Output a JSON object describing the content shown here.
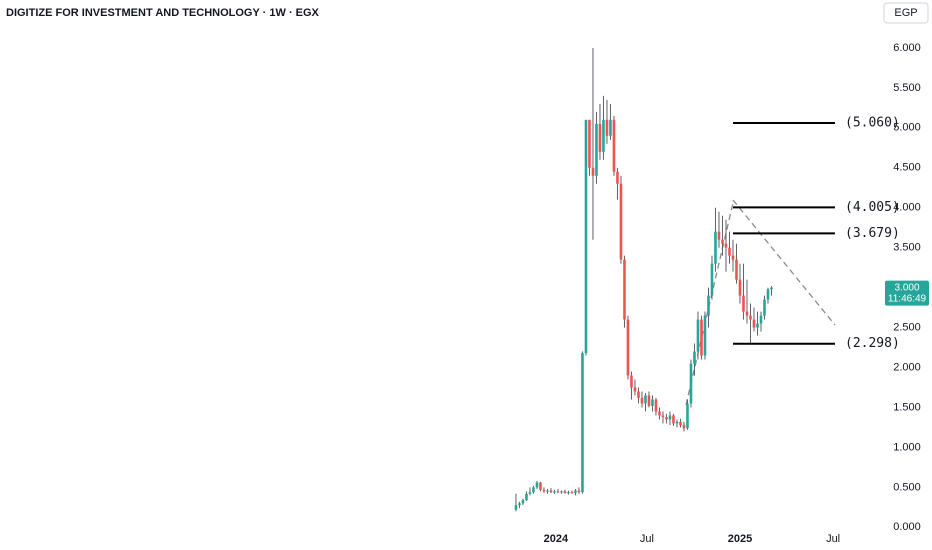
{
  "chart_data": {
    "type": "candlestick",
    "title": "DIGITIZE FOR INVESTMENT AND TECHNOLOGY · 1W · EGX",
    "currency": "EGP",
    "up_color": "#26a69a",
    "down_color": "#ef5350",
    "wick_color": "#5d606b",
    "candles": [
      [
        0.22,
        0.42,
        0.2,
        0.28
      ],
      [
        0.28,
        0.32,
        0.24,
        0.3
      ],
      [
        0.3,
        0.36,
        0.28,
        0.34
      ],
      [
        0.34,
        0.45,
        0.33,
        0.42
      ],
      [
        0.42,
        0.5,
        0.4,
        0.44
      ],
      [
        0.44,
        0.52,
        0.42,
        0.5
      ],
      [
        0.5,
        0.58,
        0.48,
        0.56
      ],
      [
        0.56,
        0.57,
        0.45,
        0.47
      ],
      [
        0.47,
        0.5,
        0.43,
        0.45
      ],
      [
        0.45,
        0.48,
        0.42,
        0.46
      ],
      [
        0.46,
        0.49,
        0.43,
        0.44
      ],
      [
        0.44,
        0.47,
        0.42,
        0.45
      ],
      [
        0.45,
        0.48,
        0.43,
        0.44
      ],
      [
        0.44,
        0.46,
        0.42,
        0.45
      ],
      [
        0.45,
        0.47,
        0.42,
        0.43
      ],
      [
        0.43,
        0.46,
        0.41,
        0.44
      ],
      [
        0.44,
        0.46,
        0.42,
        0.43
      ],
      [
        0.43,
        0.48,
        0.4,
        0.46
      ],
      [
        0.46,
        0.5,
        0.42,
        0.44
      ],
      [
        0.44,
        2.2,
        0.42,
        2.18
      ],
      [
        2.18,
        5.1,
        2.15,
        5.1
      ],
      [
        5.1,
        5.1,
        4.4,
        4.5
      ],
      [
        4.5,
        6.0,
        3.6,
        4.4
      ],
      [
        4.4,
        5.2,
        4.3,
        5.05
      ],
      [
        5.05,
        5.3,
        4.6,
        4.7
      ],
      [
        4.7,
        5.4,
        4.6,
        5.1
      ],
      [
        5.1,
        5.35,
        4.8,
        4.9
      ],
      [
        4.9,
        5.3,
        4.85,
        5.1
      ],
      [
        5.1,
        5.15,
        4.4,
        4.45
      ],
      [
        4.45,
        4.5,
        4.1,
        4.3
      ],
      [
        4.3,
        4.4,
        3.3,
        3.35
      ],
      [
        3.35,
        3.4,
        2.5,
        2.6
      ],
      [
        2.6,
        2.65,
        1.85,
        1.9
      ],
      [
        1.9,
        1.95,
        1.6,
        1.75
      ],
      [
        1.75,
        1.85,
        1.65,
        1.7
      ],
      [
        1.7,
        1.75,
        1.55,
        1.62
      ],
      [
        1.62,
        1.7,
        1.5,
        1.55
      ],
      [
        1.55,
        1.68,
        1.45,
        1.65
      ],
      [
        1.65,
        1.7,
        1.5,
        1.52
      ],
      [
        1.52,
        1.65,
        1.45,
        1.6
      ],
      [
        1.6,
        1.62,
        1.4,
        1.45
      ],
      [
        1.45,
        1.5,
        1.35,
        1.4
      ],
      [
        1.4,
        1.45,
        1.3,
        1.38
      ],
      [
        1.38,
        1.42,
        1.3,
        1.35
      ],
      [
        1.35,
        1.45,
        1.28,
        1.4
      ],
      [
        1.4,
        1.42,
        1.27,
        1.3
      ],
      [
        1.3,
        1.35,
        1.25,
        1.32
      ],
      [
        1.32,
        1.36,
        1.25,
        1.28
      ],
      [
        1.28,
        1.32,
        1.2,
        1.24
      ],
      [
        1.24,
        1.6,
        1.22,
        1.55
      ],
      [
        1.55,
        2.1,
        1.5,
        2.05
      ],
      [
        2.05,
        2.3,
        1.9,
        2.2
      ],
      [
        2.2,
        2.7,
        2.1,
        2.6
      ],
      [
        2.6,
        2.65,
        2.1,
        2.15
      ],
      [
        2.15,
        2.7,
        2.1,
        2.65
      ],
      [
        2.65,
        3.0,
        2.5,
        2.9
      ],
      [
        2.9,
        3.4,
        2.85,
        3.3
      ],
      [
        3.3,
        4.0,
        3.2,
        3.7
      ],
      [
        3.7,
        3.95,
        3.5,
        3.6
      ],
      [
        3.6,
        3.9,
        3.4,
        3.55
      ],
      [
        3.55,
        3.85,
        3.2,
        3.5
      ],
      [
        3.5,
        3.7,
        3.3,
        3.4
      ],
      [
        3.4,
        3.6,
        3.2,
        3.35
      ],
      [
        3.35,
        3.55,
        3.05,
        3.1
      ],
      [
        3.1,
        3.3,
        2.8,
        2.9
      ],
      [
        2.9,
        3.3,
        2.6,
        2.7
      ],
      [
        2.7,
        3.1,
        2.55,
        2.65
      ],
      [
        2.65,
        2.8,
        2.3,
        2.6
      ],
      [
        2.6,
        2.75,
        2.45,
        2.5
      ],
      [
        2.5,
        2.7,
        2.4,
        2.55
      ],
      [
        2.55,
        2.7,
        2.45,
        2.65
      ],
      [
        2.65,
        2.9,
        2.6,
        2.85
      ],
      [
        2.85,
        3.0,
        2.8,
        2.98
      ],
      [
        2.98,
        3.02,
        2.9,
        3.0
      ]
    ],
    "xlim": [
      -147.4,
      104
    ],
    "xticks": [
      {
        "value": 11.4,
        "label": "2024"
      },
      {
        "value": 37.4,
        "label": "Jul"
      },
      {
        "value": 64,
        "label": "2025"
      },
      {
        "value": 90.6,
        "label": "Jul"
      }
    ],
    "ylim": [
      -0.2,
      6.6
    ],
    "yticks": [
      {
        "value": 0,
        "label": "0.000"
      },
      {
        "value": 0.5,
        "label": "0.500"
      },
      {
        "value": 1,
        "label": "1.000"
      },
      {
        "value": 1.5,
        "label": "1.500"
      },
      {
        "value": 2,
        "label": "2.000"
      },
      {
        "value": 2.5,
        "label": "2.500"
      },
      {
        "value": 3,
        "label": "3.000"
      },
      {
        "value": 3.5,
        "label": "3.500"
      },
      {
        "value": 4,
        "label": "4.000"
      },
      {
        "value": 4.5,
        "label": "4.500"
      },
      {
        "value": 5,
        "label": "5.000"
      },
      {
        "value": 5.5,
        "label": "5.500"
      },
      {
        "value": 6,
        "label": "6.000"
      }
    ],
    "levels": [
      {
        "value": 5.06,
        "label": "(5.060)"
      },
      {
        "value": 4.005,
        "label": "(4.005)"
      },
      {
        "value": 3.679,
        "label": "(3.679)"
      },
      {
        "value": 2.298,
        "label": "(2.298)"
      }
    ],
    "last_price": {
      "value": 3,
      "label": "3.000"
    },
    "countdown": "11:46:49"
  }
}
